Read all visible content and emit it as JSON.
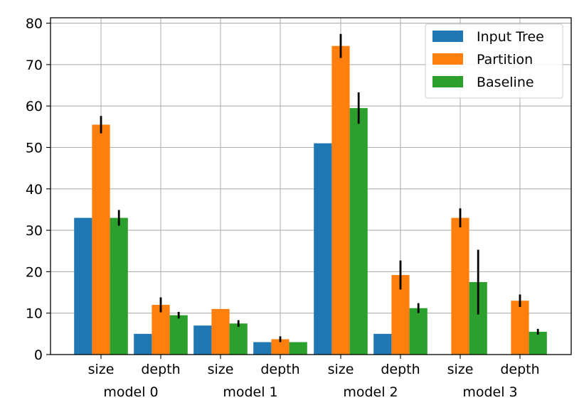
{
  "chart_data": {
    "type": "bar",
    "categories": [
      "size",
      "depth",
      "size",
      "depth",
      "size",
      "depth",
      "size",
      "depth"
    ],
    "groups": [
      "model 0",
      "model 1",
      "model 2",
      "model 3"
    ],
    "series": [
      {
        "name": "Input Tree",
        "color": "#1f77b4",
        "values": [
          33,
          5,
          7,
          3,
          51,
          5,
          0,
          0
        ],
        "errors": [
          0,
          0,
          0,
          0,
          0,
          0,
          0,
          0
        ]
      },
      {
        "name": "Partition",
        "color": "#ff7f0e",
        "values": [
          55.5,
          12,
          11,
          3.7,
          74.5,
          19.2,
          33,
          13
        ],
        "errors": [
          2.1,
          1.8,
          0,
          0.7,
          2.9,
          3.5,
          2.3,
          1.5
        ]
      },
      {
        "name": "Baseline",
        "color": "#2ca02c",
        "values": [
          33,
          9.5,
          7.5,
          3,
          59.5,
          11.2,
          17.5,
          5.5
        ],
        "errors": [
          1.9,
          0.8,
          0.8,
          0,
          3.8,
          1.2,
          7.8,
          0.7
        ]
      }
    ],
    "ylim": [
      0,
      81
    ],
    "yticks": [
      "0",
      "10",
      "20",
      "30",
      "40",
      "50",
      "60",
      "70",
      "80"
    ],
    "grid": true,
    "legend_position": "top-right"
  }
}
